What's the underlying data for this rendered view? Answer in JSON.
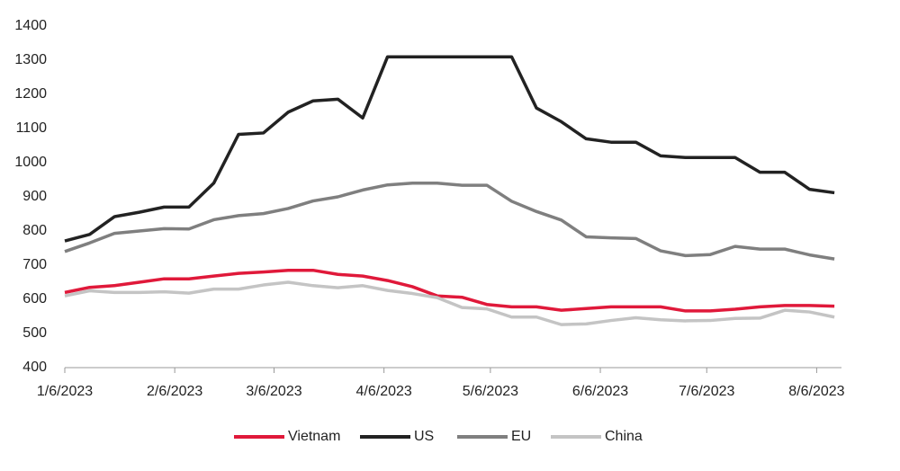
{
  "chart_data": {
    "type": "line",
    "x": [
      "2023-01-06",
      "2023-01-13",
      "2023-01-20",
      "2023-01-27",
      "2023-02-03",
      "2023-02-10",
      "2023-02-17",
      "2023-02-24",
      "2023-03-03",
      "2023-03-10",
      "2023-03-17",
      "2023-03-24",
      "2023-03-31",
      "2023-04-07",
      "2023-04-14",
      "2023-04-21",
      "2023-04-28",
      "2023-05-05",
      "2023-05-12",
      "2023-05-19",
      "2023-05-26",
      "2023-06-02",
      "2023-06-09",
      "2023-06-16",
      "2023-06-23",
      "2023-06-30",
      "2023-07-07",
      "2023-07-14",
      "2023-07-21",
      "2023-07-28",
      "2023-08-04",
      "2023-08-11"
    ],
    "series": [
      {
        "name": "Vietnam",
        "color": "#e0193a",
        "values": [
          620,
          635,
          640,
          650,
          660,
          660,
          668,
          676,
          680,
          685,
          685,
          673,
          668,
          655,
          637,
          610,
          606,
          585,
          578,
          578,
          568,
          573,
          578,
          578,
          578,
          566,
          566,
          571,
          578,
          582,
          582,
          580
        ]
      },
      {
        "name": "US",
        "color": "#222222",
        "values": [
          771,
          790,
          842,
          855,
          870,
          870,
          940,
          1083,
          1087,
          1148,
          1181,
          1186,
          1131,
          1310,
          1310,
          1310,
          1310,
          1310,
          1310,
          1160,
          1120,
          1070,
          1060,
          1060,
          1020,
          1015,
          1015,
          1015,
          972,
          972,
          922,
          912
        ]
      },
      {
        "name": "EU",
        "color": "#7f7f7f",
        "values": [
          740,
          765,
          793,
          800,
          807,
          806,
          833,
          845,
          851,
          866,
          888,
          900,
          920,
          935,
          940,
          940,
          934,
          934,
          887,
          857,
          832,
          783,
          780,
          778,
          742,
          728,
          731,
          755,
          747,
          747,
          730,
          718
        ]
      },
      {
        "name": "China",
        "color": "#c4c4c4",
        "values": [
          610,
          625,
          620,
          620,
          622,
          618,
          630,
          630,
          642,
          650,
          640,
          634,
          640,
          626,
          617,
          605,
          576,
          572,
          548,
          548,
          526,
          528,
          538,
          546,
          540,
          537,
          538,
          544,
          545,
          568,
          563,
          548
        ]
      }
    ],
    "xlim": [
      "2023-01-06",
      "2023-08-13"
    ],
    "xticks": [
      {
        "value": "2023-01-06",
        "label": "1/6/2023"
      },
      {
        "value": "2023-02-06",
        "label": "2/6/2023"
      },
      {
        "value": "2023-03-06",
        "label": "3/6/2023"
      },
      {
        "value": "2023-04-06",
        "label": "4/6/2023"
      },
      {
        "value": "2023-05-06",
        "label": "5/6/2023"
      },
      {
        "value": "2023-06-06",
        "label": "6/6/2023"
      },
      {
        "value": "2023-07-06",
        "label": "7/6/2023"
      },
      {
        "value": "2023-08-06",
        "label": "8/6/2023"
      }
    ],
    "ylim": [
      400,
      1400
    ],
    "yticks": [
      400,
      500,
      600,
      700,
      800,
      900,
      1000,
      1100,
      1200,
      1300,
      1400
    ],
    "grid": false,
    "legend": "bottom"
  }
}
